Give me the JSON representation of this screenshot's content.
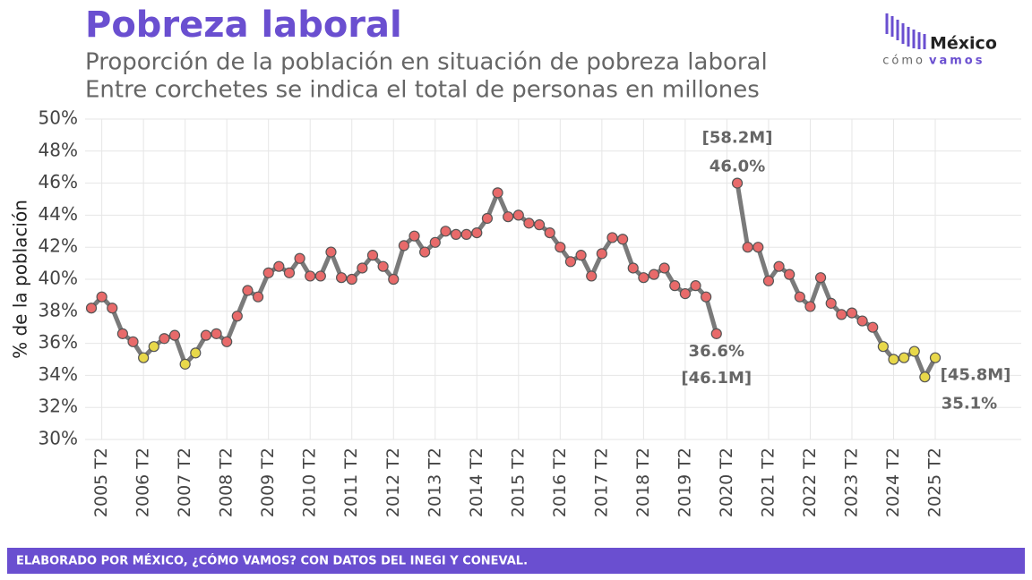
{
  "chart_data": {
    "type": "line",
    "title": "Pobreza laboral",
    "subtitle": [
      "Proporción de la población en situación de pobreza laboral",
      "Entre corchetes se indica el total de personas en millones"
    ],
    "y_label": "% de la población",
    "source": "ELABORADO POR MÉXICO, ¿CÓMO VAMOS? CON DATOS DEL INEGI Y CONEVAL.",
    "logo": {
      "brand": "México",
      "line1": "cómo",
      "line2": "vamos"
    },
    "categories": [
      null,
      "2005 T2",
      null,
      null,
      null,
      "2006 T2",
      null,
      null,
      null,
      "2007 T2",
      null,
      null,
      null,
      "2008 T2",
      null,
      null,
      null,
      "2009 T2",
      null,
      null,
      null,
      "2010 T2",
      null,
      null,
      null,
      "2011 T2",
      null,
      null,
      null,
      "2012 T2",
      null,
      null,
      null,
      "2013 T2",
      null,
      null,
      null,
      "2014 T2",
      null,
      null,
      null,
      "2015 T2",
      null,
      null,
      null,
      "2016 T2",
      null,
      null,
      null,
      "2017 T2",
      null,
      null,
      null,
      "2018 T2",
      null,
      null,
      null,
      "2019 T2",
      null,
      null,
      null,
      "2020 T2",
      null,
      null,
      null,
      "2021 T2",
      null,
      null,
      null,
      "2022 T2",
      null,
      null,
      null,
      "2023 T2",
      null,
      null,
      null,
      "2024 T2",
      null,
      null,
      null,
      "2025 T2"
    ],
    "values": [
      38.2,
      38.9,
      38.2,
      36.6,
      36.1,
      35.1,
      35.8,
      36.3,
      36.5,
      34.7,
      35.4,
      36.5,
      36.6,
      36.1,
      37.7,
      39.3,
      38.9,
      40.4,
      40.8,
      40.4,
      41.3,
      40.2,
      40.2,
      41.7,
      40.1,
      40.0,
      40.7,
      41.5,
      40.8,
      40.0,
      42.1,
      42.7,
      41.7,
      42.3,
      43.0,
      42.8,
      42.8,
      42.9,
      43.8,
      45.4,
      43.9,
      44.0,
      43.5,
      43.4,
      42.9,
      42.0,
      41.1,
      41.5,
      40.2,
      41.6,
      42.6,
      42.5,
      40.7,
      40.1,
      40.3,
      40.7,
      39.6,
      39.1,
      39.6,
      38.9,
      36.6,
      null,
      46.0,
      42.0,
      42.0,
      39.9,
      40.8,
      40.3,
      38.9,
      38.3,
      40.1,
      38.5,
      37.8,
      37.9,
      37.4,
      37.0,
      35.8,
      35.0,
      35.1,
      35.5,
      33.9,
      35.1
    ],
    "value_labels": [
      null,
      null,
      null,
      null,
      null,
      null,
      null,
      null,
      null,
      null,
      null,
      null,
      null,
      null,
      null,
      null,
      null,
      null,
      null,
      null,
      null,
      null,
      null,
      null,
      null,
      null,
      null,
      null,
      null,
      null,
      null,
      null,
      null,
      null,
      null,
      null,
      null,
      null,
      null,
      null,
      null,
      null,
      null,
      null,
      null,
      null,
      null,
      null,
      null,
      null,
      null,
      null,
      null,
      null,
      null,
      null,
      null,
      null,
      null,
      null,
      "36.6%",
      null,
      "46.0%",
      null,
      null,
      null,
      null,
      null,
      null,
      null,
      null,
      null,
      null,
      null,
      null,
      null,
      null,
      null,
      null,
      null,
      null,
      "35.1%"
    ],
    "people_labels": [
      null,
      null,
      null,
      null,
      null,
      null,
      null,
      null,
      null,
      null,
      null,
      null,
      null,
      null,
      null,
      null,
      null,
      null,
      null,
      null,
      null,
      null,
      null,
      null,
      null,
      null,
      null,
      null,
      null,
      null,
      null,
      null,
      null,
      null,
      null,
      null,
      null,
      null,
      null,
      null,
      null,
      null,
      null,
      null,
      null,
      null,
      null,
      null,
      null,
      null,
      null,
      null,
      null,
      null,
      null,
      null,
      null,
      null,
      null,
      null,
      "[46.1M]",
      null,
      "[58.2M]",
      null,
      null,
      null,
      null,
      null,
      null,
      null,
      null,
      null,
      null,
      null,
      null,
      null,
      null,
      null,
      null,
      null,
      null,
      "[45.8M]"
    ],
    "line_color": "#7a7a7a",
    "marker_colors": [
      "#e86a6a",
      "#e86a6a",
      "#e86a6a",
      "#e86a6a",
      "#e86a6a",
      "#e8d84a",
      "#e8d84a",
      "#e86a6a",
      "#e86a6a",
      "#e8d84a",
      "#e8d84a",
      "#e86a6a",
      "#e86a6a",
      "#e86a6a",
      "#e86a6a",
      "#e86a6a",
      "#e86a6a",
      "#e86a6a",
      "#e86a6a",
      "#e86a6a",
      "#e86a6a",
      "#e86a6a",
      "#e86a6a",
      "#e86a6a",
      "#e86a6a",
      "#e86a6a",
      "#e86a6a",
      "#e86a6a",
      "#e86a6a",
      "#e86a6a",
      "#e86a6a",
      "#e86a6a",
      "#e86a6a",
      "#e86a6a",
      "#e86a6a",
      "#e86a6a",
      "#e86a6a",
      "#e86a6a",
      "#e86a6a",
      "#e86a6a",
      "#e86a6a",
      "#e86a6a",
      "#e86a6a",
      "#e86a6a",
      "#e86a6a",
      "#e86a6a",
      "#e86a6a",
      "#e86a6a",
      "#e86a6a",
      "#e86a6a",
      "#e86a6a",
      "#e86a6a",
      "#e86a6a",
      "#e86a6a",
      "#e86a6a",
      "#e86a6a",
      "#e86a6a",
      "#e86a6a",
      "#e86a6a",
      "#e86a6a",
      "#e86a6a",
      null,
      "#e86a6a",
      "#e86a6a",
      "#e86a6a",
      "#e86a6a",
      "#e86a6a",
      "#e86a6a",
      "#e86a6a",
      "#e86a6a",
      "#e86a6a",
      "#e86a6a",
      "#e86a6a",
      "#e86a6a",
      "#e86a6a",
      "#e86a6a",
      "#e8d84a",
      "#e8d84a",
      "#e8d84a",
      "#e8d84a",
      "#e8d84a",
      "#e8d84a"
    ],
    "ylim": [
      30,
      50
    ],
    "yticks": [
      {
        "value": 30,
        "label": "30%"
      },
      {
        "value": 32,
        "label": "32%"
      },
      {
        "value": 34,
        "label": "34%"
      },
      {
        "value": 36,
        "label": "36%"
      },
      {
        "value": 38,
        "label": "38%"
      },
      {
        "value": 40,
        "label": "40%"
      },
      {
        "value": 42,
        "label": "42%"
      },
      {
        "value": 44,
        "label": "44%"
      },
      {
        "value": 46,
        "label": "46%"
      },
      {
        "value": 48,
        "label": "48%"
      },
      {
        "value": 50,
        "label": "50%"
      }
    ],
    "grid": true
  }
}
